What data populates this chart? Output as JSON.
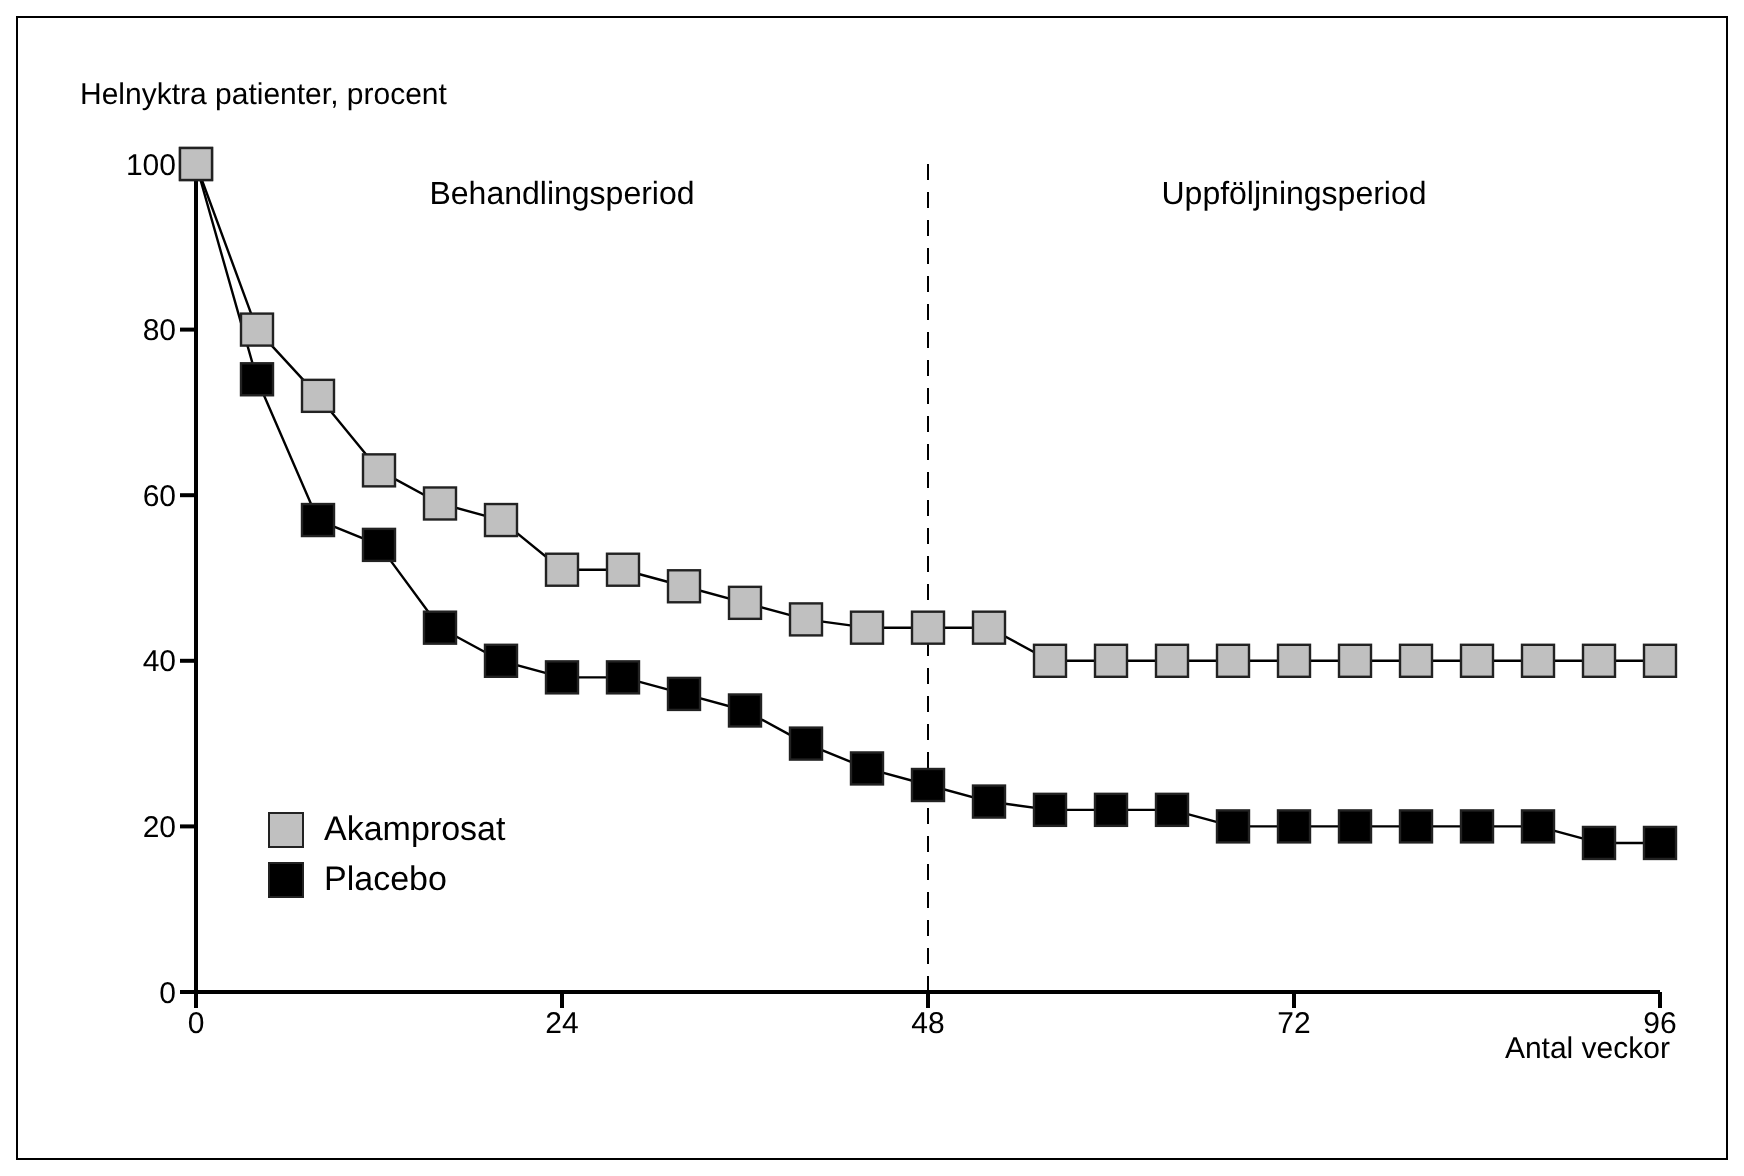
{
  "chart_data": {
    "type": "line",
    "ylabel": "Helnyktra patienter, procent",
    "xlabel": "Antal veckor",
    "annotations": [
      "Behandlingsperiod",
      "Uppföljningsperiod"
    ],
    "x": [
      0,
      4,
      8,
      12,
      16,
      20,
      24,
      28,
      32,
      36,
      40,
      44,
      48,
      52,
      56,
      60,
      64,
      68,
      72,
      76,
      80,
      84,
      88,
      92,
      96
    ],
    "series": [
      {
        "name": "Akamprosat",
        "color": "#c0c0c0",
        "values": [
          100,
          80,
          72,
          63,
          59,
          57,
          51,
          51,
          49,
          47,
          45,
          44,
          44,
          44,
          40,
          40,
          40,
          40,
          40,
          40,
          40,
          40,
          40,
          40,
          40
        ]
      },
      {
        "name": "Placebo",
        "color": "#000000",
        "values": [
          100,
          74,
          57,
          54,
          44,
          40,
          38,
          38,
          36,
          34,
          30,
          27,
          25,
          23,
          22,
          22,
          22,
          20,
          20,
          20,
          20,
          20,
          20,
          18,
          18
        ]
      }
    ],
    "xlim": [
      0,
      96
    ],
    "xticks": [
      0,
      24,
      48,
      72,
      96
    ],
    "ylim": [
      0,
      100
    ],
    "yticks": [
      0,
      20,
      40,
      60,
      80,
      100
    ],
    "ref_lines": [
      {
        "axis": "x",
        "value": 48,
        "line_style": "dashed",
        "color": "#000000"
      }
    ],
    "grid": false,
    "legend": "bottom left",
    "marker": "square",
    "line_style": "solid"
  }
}
